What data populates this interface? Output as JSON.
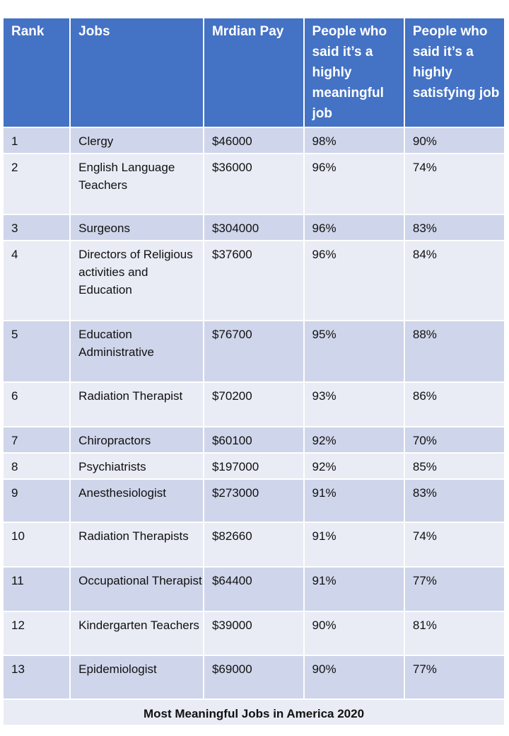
{
  "chart_data": {
    "type": "table",
    "title": "Most Meaningful Jobs in America 2020",
    "columns": [
      "Rank",
      "Jobs",
      "Mrdian Pay",
      "People who said it’s a highly meaningful job",
      "People who said it’s a highly satisfying job"
    ],
    "rows": [
      [
        "1",
        "Clergy",
        "$46000",
        "98%",
        "90%"
      ],
      [
        "2",
        "English Language Teachers",
        "$36000",
        "96%",
        "74%"
      ],
      [
        "3",
        "Surgeons",
        "$304000",
        "96%",
        "83%"
      ],
      [
        "4",
        "Directors of Religious activities and Education",
        "$37600",
        "96%",
        "84%"
      ],
      [
        "5",
        "Education Administrative",
        "$76700",
        "95%",
        "88%"
      ],
      [
        "6",
        "Radiation Therapist",
        "$70200",
        "93%",
        "86%"
      ],
      [
        "7",
        "Chiropractors",
        "$60100",
        "92%",
        "70%"
      ],
      [
        "8",
        "Psychiatrists",
        "$197000",
        "92%",
        "85%"
      ],
      [
        "9",
        "Anesthesiologist",
        "$273000",
        "91%",
        "83%"
      ],
      [
        "10",
        "Radiation Therapists",
        "$82660",
        "91%",
        "74%"
      ],
      [
        "11",
        "Occupational Therapist",
        "$64400",
        "91%",
        "77%"
      ],
      [
        "12",
        "Kindergarten Teachers",
        "$39000",
        "90%",
        "81%"
      ],
      [
        "13",
        "Epidemiologist",
        "$69000",
        "90%",
        "77%"
      ]
    ],
    "colors": {
      "header": "#4472c4",
      "row_dark": "#cfd5ea",
      "row_light": "#e9ebf5"
    }
  }
}
